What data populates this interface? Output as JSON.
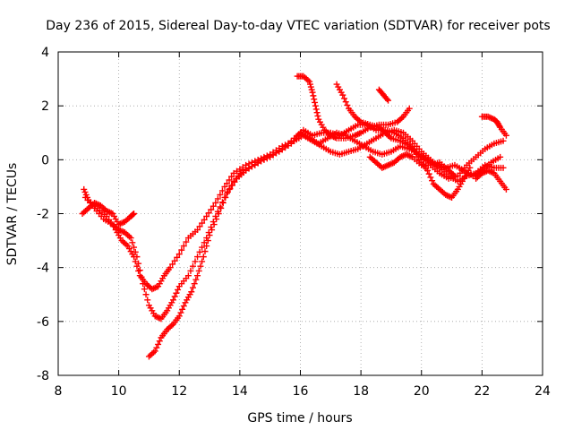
{
  "chart_data": {
    "type": "scatter",
    "title": "Day 236 of 2015, Sidereal Day-to-day VTEC variation (SDTVAR) for receiver pots",
    "xlabel": "GPS time / hours",
    "ylabel": "SDTVAR / TECUs",
    "xlim": [
      8,
      24
    ],
    "ylim": [
      -8,
      4
    ],
    "x_ticks": [
      "8",
      "10",
      "12",
      "14",
      "16",
      "18",
      "20",
      "22",
      "24"
    ],
    "y_ticks": [
      "-8",
      "-6",
      "-4",
      "-2",
      "0",
      "2",
      "4"
    ],
    "grid": true,
    "marker": "+",
    "series": [
      {
        "name": "track-1",
        "color": "#ff0000",
        "points": [
          [
            8.85,
            -1.1
          ],
          [
            9.0,
            -1.5
          ],
          [
            9.3,
            -1.8
          ],
          [
            9.6,
            -2.1
          ],
          [
            9.9,
            -2.6
          ],
          [
            10.1,
            -3.0
          ],
          [
            10.3,
            -3.2
          ],
          [
            10.5,
            -3.6
          ],
          [
            10.7,
            -4.3
          ],
          [
            10.9,
            -4.6
          ],
          [
            11.1,
            -4.8
          ],
          [
            11.3,
            -4.7
          ],
          [
            11.5,
            -4.3
          ],
          [
            11.7,
            -4.0
          ],
          [
            12.0,
            -3.5
          ],
          [
            12.3,
            -2.9
          ],
          [
            12.6,
            -2.6
          ],
          [
            12.9,
            -2.1
          ],
          [
            13.2,
            -1.6
          ],
          [
            13.5,
            -1.0
          ],
          [
            13.8,
            -0.5
          ],
          [
            14.2,
            -0.2
          ],
          [
            14.6,
            0.0
          ],
          [
            15.0,
            0.2
          ],
          [
            15.4,
            0.5
          ],
          [
            15.8,
            0.7
          ],
          [
            16.1,
            0.9
          ],
          [
            16.4,
            0.7
          ],
          [
            16.7,
            0.5
          ],
          [
            17.0,
            0.3
          ],
          [
            17.3,
            0.2
          ],
          [
            17.6,
            0.3
          ],
          [
            17.9,
            0.4
          ],
          [
            18.2,
            0.6
          ],
          [
            18.5,
            0.8
          ],
          [
            18.8,
            1.0
          ],
          [
            19.1,
            1.1
          ],
          [
            19.4,
            1.0
          ],
          [
            19.7,
            0.7
          ],
          [
            20.0,
            0.3
          ],
          [
            20.3,
            0.0
          ],
          [
            20.6,
            -0.3
          ],
          [
            20.9,
            -0.6
          ],
          [
            21.2,
            -0.8
          ],
          [
            21.5,
            -0.6
          ],
          [
            21.8,
            -0.5
          ],
          [
            22.1,
            -0.2
          ],
          [
            22.4,
            -0.3
          ],
          [
            22.7,
            -0.3
          ]
        ]
      },
      {
        "name": "track-2",
        "color": "#ff0000",
        "points": [
          [
            8.9,
            -1.4
          ],
          [
            9.2,
            -1.8
          ],
          [
            9.5,
            -2.2
          ],
          [
            9.8,
            -2.4
          ],
          [
            10.0,
            -2.6
          ],
          [
            10.2,
            -2.7
          ],
          [
            10.4,
            -2.9
          ],
          [
            10.6,
            -3.6
          ],
          [
            10.8,
            -4.6
          ],
          [
            11.0,
            -5.4
          ],
          [
            11.2,
            -5.8
          ],
          [
            11.4,
            -5.9
          ],
          [
            11.6,
            -5.6
          ],
          [
            11.8,
            -5.2
          ],
          [
            12.0,
            -4.7
          ],
          [
            12.3,
            -4.3
          ],
          [
            12.6,
            -3.6
          ],
          [
            12.9,
            -2.9
          ],
          [
            13.2,
            -2.1
          ],
          [
            13.5,
            -1.4
          ],
          [
            13.8,
            -0.8
          ],
          [
            14.1,
            -0.4
          ],
          [
            14.5,
            -0.2
          ],
          [
            14.9,
            0.1
          ],
          [
            15.3,
            0.3
          ],
          [
            15.7,
            0.6
          ],
          [
            16.0,
            1.0
          ],
          [
            16.3,
            0.8
          ],
          [
            16.6,
            0.6
          ],
          [
            16.9,
            0.8
          ],
          [
            17.2,
            1.0
          ],
          [
            17.5,
            0.9
          ],
          [
            17.8,
            0.7
          ],
          [
            18.1,
            0.5
          ],
          [
            18.4,
            0.3
          ],
          [
            18.7,
            0.2
          ],
          [
            19.0,
            0.3
          ],
          [
            19.3,
            0.5
          ],
          [
            19.6,
            0.4
          ],
          [
            19.9,
            0.2
          ],
          [
            20.2,
            0.0
          ],
          [
            20.5,
            -0.2
          ],
          [
            20.8,
            -0.3
          ],
          [
            21.1,
            -0.2
          ],
          [
            21.4,
            -0.4
          ],
          [
            21.7,
            -0.6
          ],
          [
            22.0,
            -0.4
          ],
          [
            22.3,
            -0.1
          ],
          [
            22.6,
            0.1
          ]
        ]
      },
      {
        "name": "track-3",
        "color": "#ff0000",
        "points": [
          [
            11.0,
            -7.3
          ],
          [
            11.2,
            -7.1
          ],
          [
            11.4,
            -6.6
          ],
          [
            11.6,
            -6.3
          ],
          [
            11.8,
            -6.1
          ],
          [
            12.0,
            -5.8
          ],
          [
            12.2,
            -5.3
          ],
          [
            12.4,
            -4.9
          ],
          [
            12.6,
            -4.3
          ],
          [
            12.8,
            -3.6
          ],
          [
            13.0,
            -2.8
          ],
          [
            13.3,
            -2.0
          ],
          [
            13.6,
            -1.2
          ],
          [
            13.9,
            -0.7
          ],
          [
            14.2,
            -0.4
          ],
          [
            14.6,
            -0.1
          ],
          [
            15.0,
            0.1
          ],
          [
            15.4,
            0.4
          ],
          [
            15.8,
            0.8
          ],
          [
            16.1,
            1.1
          ],
          [
            16.4,
            0.9
          ],
          [
            16.7,
            1.0
          ],
          [
            17.0,
            1.0
          ],
          [
            17.3,
            0.9
          ],
          [
            17.6,
            1.1
          ],
          [
            17.9,
            1.3
          ],
          [
            18.2,
            1.3
          ],
          [
            18.5,
            1.1
          ],
          [
            18.8,
            1.1
          ],
          [
            19.1,
            1.0
          ],
          [
            19.4,
            0.8
          ],
          [
            19.7,
            0.5
          ],
          [
            20.0,
            0.1
          ],
          [
            20.3,
            -0.2
          ],
          [
            20.6,
            -0.5
          ],
          [
            20.9,
            -0.7
          ],
          [
            21.2,
            -0.6
          ],
          [
            21.5,
            -0.2
          ],
          [
            21.8,
            0.1
          ],
          [
            22.1,
            0.4
          ],
          [
            22.4,
            0.6
          ],
          [
            22.7,
            0.7
          ]
        ]
      },
      {
        "name": "track-4",
        "color": "#ff0000",
        "points": [
          [
            8.8,
            -2.0
          ],
          [
            9.0,
            -1.8
          ],
          [
            9.2,
            -1.6
          ],
          [
            9.4,
            -1.7
          ],
          [
            9.6,
            -1.9
          ],
          [
            9.8,
            -2.0
          ],
          [
            10.0,
            -2.4
          ],
          [
            10.2,
            -2.3
          ],
          [
            10.4,
            -2.1
          ],
          [
            10.5,
            -2.0
          ]
        ]
      },
      {
        "name": "track-5",
        "color": "#ff0000",
        "points": [
          [
            15.9,
            3.1
          ],
          [
            16.1,
            3.1
          ],
          [
            16.3,
            2.9
          ],
          [
            16.4,
            2.5
          ],
          [
            16.5,
            2.0
          ],
          [
            16.6,
            1.5
          ],
          [
            16.8,
            1.1
          ],
          [
            17.0,
            0.9
          ],
          [
            17.2,
            0.8
          ],
          [
            17.5,
            0.8
          ],
          [
            17.8,
            0.9
          ],
          [
            18.0,
            1.0
          ],
          [
            18.3,
            1.2
          ],
          [
            18.6,
            1.3
          ],
          [
            18.9,
            1.3
          ],
          [
            19.2,
            1.4
          ],
          [
            19.4,
            1.6
          ],
          [
            19.6,
            1.9
          ]
        ]
      },
      {
        "name": "track-6",
        "color": "#ff0000",
        "points": [
          [
            17.2,
            2.8
          ],
          [
            17.4,
            2.4
          ],
          [
            17.6,
            1.9
          ],
          [
            17.8,
            1.6
          ],
          [
            18.0,
            1.4
          ],
          [
            18.3,
            1.3
          ],
          [
            18.6,
            1.2
          ],
          [
            18.8,
            1.0
          ],
          [
            19.0,
            0.8
          ],
          [
            19.3,
            0.7
          ],
          [
            19.6,
            0.5
          ],
          [
            19.8,
            0.3
          ],
          [
            20.0,
            -0.1
          ],
          [
            20.2,
            -0.4
          ],
          [
            20.4,
            -0.9
          ],
          [
            20.6,
            -1.1
          ],
          [
            20.8,
            -1.3
          ],
          [
            21.0,
            -1.4
          ],
          [
            21.2,
            -1.1
          ],
          [
            21.4,
            -0.7
          ],
          [
            21.6,
            -0.3
          ]
        ]
      },
      {
        "name": "track-7",
        "color": "#ff0000",
        "points": [
          [
            18.6,
            2.6
          ],
          [
            18.75,
            2.4
          ],
          [
            18.9,
            2.2
          ]
        ]
      },
      {
        "name": "track-8",
        "color": "#ff0000",
        "points": [
          [
            22.0,
            1.6
          ],
          [
            22.2,
            1.6
          ],
          [
            22.4,
            1.5
          ],
          [
            22.5,
            1.4
          ],
          [
            22.6,
            1.2
          ],
          [
            22.8,
            0.9
          ]
        ]
      },
      {
        "name": "track-9",
        "color": "#ff0000",
        "points": [
          [
            21.8,
            -0.7
          ],
          [
            22.0,
            -0.5
          ],
          [
            22.2,
            -0.4
          ],
          [
            22.4,
            -0.5
          ],
          [
            22.6,
            -0.8
          ],
          [
            22.8,
            -1.1
          ]
        ]
      },
      {
        "name": "track-10",
        "color": "#ff0000",
        "points": [
          [
            18.3,
            0.1
          ],
          [
            18.5,
            -0.1
          ],
          [
            18.7,
            -0.3
          ],
          [
            18.9,
            -0.2
          ],
          [
            19.1,
            -0.1
          ],
          [
            19.3,
            0.1
          ],
          [
            19.5,
            0.2
          ],
          [
            19.7,
            0.1
          ],
          [
            20.0,
            -0.2
          ],
          [
            20.3,
            -0.2
          ],
          [
            20.6,
            -0.1
          ],
          [
            20.9,
            -0.4
          ],
          [
            21.1,
            -0.6
          ]
        ]
      }
    ]
  }
}
